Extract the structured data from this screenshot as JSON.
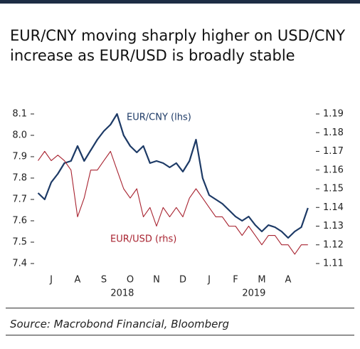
{
  "chart_data": {
    "type": "line",
    "title": "EUR/CNY moving sharply higher on USD/CNY increase as EUR/USD is broadly stable",
    "source": "Source: Macrobond Financial, Bloomberg",
    "x": [
      0,
      0.25,
      0.5,
      0.75,
      1,
      1.25,
      1.5,
      1.75,
      2,
      2.25,
      2.5,
      2.75,
      3,
      3.25,
      3.5,
      3.75,
      4,
      4.25,
      4.5,
      4.75,
      5,
      5.25,
      5.5,
      5.75,
      6,
      6.25,
      6.5,
      6.75,
      7,
      7.25,
      7.5,
      7.75,
      8,
      8.25,
      8.5,
      8.75,
      9,
      9.25,
      9.5,
      9.75,
      10,
      10.25
    ],
    "xlim": [
      0,
      10.5
    ],
    "xticks": [
      {
        "value": 0.5,
        "label": "J"
      },
      {
        "value": 1.5,
        "label": "A"
      },
      {
        "value": 2.5,
        "label": "S"
      },
      {
        "value": 3.5,
        "label": "O"
      },
      {
        "value": 4.5,
        "label": "N"
      },
      {
        "value": 5.5,
        "label": "D"
      },
      {
        "value": 6.5,
        "label": "J"
      },
      {
        "value": 7.5,
        "label": "F"
      },
      {
        "value": 8.5,
        "label": "M"
      },
      {
        "value": 9.5,
        "label": "A"
      }
    ],
    "year_labels": [
      {
        "value": 3.2,
        "label": "2018"
      },
      {
        "value": 8.2,
        "label": "2019"
      }
    ],
    "ylim": [
      7.4,
      8.1
    ],
    "yticks": [
      7.4,
      7.5,
      7.6,
      7.7,
      7.8,
      7.9,
      {
        "value": 8.0,
        "label": "8.0"
      },
      8.1
    ],
    "y2lim": [
      1.11,
      1.19
    ],
    "y2ticks": [
      1.11,
      1.12,
      1.13,
      1.14,
      1.15,
      1.16,
      1.17,
      1.18,
      1.19
    ],
    "series": [
      {
        "name": "EUR/CNY (lhs)",
        "color": "#1d3a66",
        "values": [
          7.73,
          7.7,
          7.78,
          7.82,
          7.87,
          7.88,
          7.95,
          7.88,
          7.93,
          7.98,
          8.02,
          8.05,
          8.1,
          8.0,
          7.95,
          7.92,
          7.95,
          7.87,
          7.88,
          7.87,
          7.85,
          7.87,
          7.83,
          7.88,
          7.98,
          7.8,
          7.72,
          7.7,
          7.68,
          7.65,
          7.62,
          7.6,
          7.62,
          7.58,
          7.55,
          7.58,
          7.57,
          7.55,
          7.52,
          7.55,
          7.57,
          7.66
        ]
      },
      {
        "name": "EUR/USD (rhs)",
        "color": "#a82330",
        "axis": "y2",
        "values": [
          1.165,
          1.17,
          1.165,
          1.168,
          1.165,
          1.16,
          1.135,
          1.145,
          1.16,
          1.16,
          1.165,
          1.17,
          1.16,
          1.15,
          1.145,
          1.15,
          1.135,
          1.14,
          1.13,
          1.14,
          1.135,
          1.14,
          1.135,
          1.145,
          1.15,
          1.145,
          1.14,
          1.135,
          1.135,
          1.13,
          1.13,
          1.125,
          1.13,
          1.125,
          1.12,
          1.125,
          1.125,
          1.12,
          1.12,
          1.115,
          1.12,
          1.12
        ]
      }
    ]
  }
}
